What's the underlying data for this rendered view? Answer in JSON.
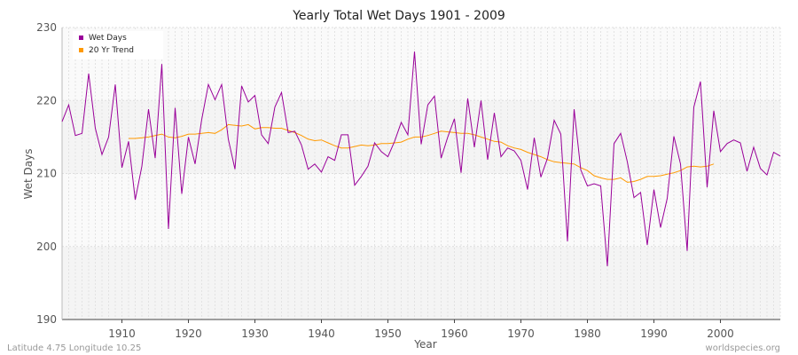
{
  "chart_data": {
    "type": "line",
    "title": "Yearly Total Wet Days 1901 - 2009",
    "xlabel": "Year",
    "ylabel": "Wet Days",
    "xlim": [
      1901,
      2009
    ],
    "ylim": [
      190,
      230
    ],
    "xticks": [
      "1910",
      "1920",
      "1930",
      "1940",
      "1950",
      "1960",
      "1970",
      "1980",
      "1990",
      "2000"
    ],
    "yticks": [
      "190",
      "200",
      "210",
      "220",
      "230"
    ],
    "legend_position": "top-left",
    "grid": true,
    "series": [
      {
        "name": "Wet Days",
        "color": "#990099",
        "x": [
          1901,
          1902,
          1903,
          1904,
          1905,
          1906,
          1907,
          1908,
          1909,
          1910,
          1911,
          1912,
          1913,
          1914,
          1915,
          1916,
          1917,
          1918,
          1919,
          1920,
          1921,
          1922,
          1923,
          1924,
          1925,
          1926,
          1927,
          1928,
          1929,
          1930,
          1931,
          1932,
          1933,
          1934,
          1935,
          1936,
          1937,
          1938,
          1939,
          1940,
          1941,
          1942,
          1943,
          1944,
          1945,
          1946,
          1947,
          1948,
          1949,
          1950,
          1951,
          1952,
          1953,
          1954,
          1955,
          1956,
          1957,
          1958,
          1959,
          1960,
          1961,
          1962,
          1963,
          1964,
          1965,
          1966,
          1967,
          1968,
          1969,
          1970,
          1971,
          1972,
          1973,
          1974,
          1975,
          1976,
          1977,
          1978,
          1979,
          1980,
          1981,
          1982,
          1983,
          1984,
          1985,
          1986,
          1987,
          1988,
          1989,
          1990,
          1991,
          1992,
          1993,
          1994,
          1995,
          1996,
          1997,
          1998,
          1999,
          2000,
          2001,
          2002,
          2003,
          2004,
          2005,
          2006,
          2007,
          2008,
          2009
        ],
        "values": [
          217.1,
          219.4,
          215.2,
          215.5,
          223.7,
          216.2,
          212.6,
          215.0,
          222.2,
          210.8,
          214.4,
          206.4,
          211.0,
          218.8,
          212.1,
          225.0,
          202.4,
          219.0,
          207.2,
          215.0,
          211.3,
          217.4,
          222.2,
          220.1,
          222.2,
          214.7,
          210.6,
          222.0,
          219.8,
          220.7,
          215.3,
          214.1,
          219.1,
          221.1,
          215.6,
          215.8,
          213.9,
          210.6,
          211.3,
          210.2,
          212.3,
          211.8,
          215.3,
          215.3,
          208.4,
          209.6,
          211.0,
          214.2,
          213.0,
          212.3,
          214.4,
          217.0,
          215.3,
          226.7,
          214.0,
          219.4,
          220.6,
          212.1,
          215.0,
          217.5,
          210.1,
          220.3,
          213.6,
          220.0,
          211.9,
          218.3,
          212.3,
          213.5,
          213.1,
          211.8,
          207.8,
          214.9,
          209.5,
          212.1,
          217.3,
          215.4,
          200.7,
          218.8,
          210.5,
          208.3,
          208.6,
          208.3,
          197.3,
          214.1,
          215.5,
          211.6,
          206.7,
          207.4,
          200.2,
          207.8,
          202.6,
          206.6,
          215.1,
          211.3,
          199.4,
          219.1,
          222.6,
          208.1,
          218.6,
          213.0,
          214.1,
          214.6,
          214.2,
          210.3,
          213.6,
          210.7,
          209.8,
          212.9,
          212.4
        ]
      },
      {
        "name": "20 Yr Trend",
        "color": "#FF9900",
        "x": [
          1911,
          1912,
          1913,
          1914,
          1915,
          1916,
          1917,
          1918,
          1919,
          1920,
          1921,
          1922,
          1923,
          1924,
          1925,
          1926,
          1927,
          1928,
          1929,
          1930,
          1931,
          1932,
          1933,
          1934,
          1935,
          1936,
          1937,
          1938,
          1939,
          1940,
          1941,
          1942,
          1943,
          1944,
          1945,
          1946,
          1947,
          1948,
          1949,
          1950,
          1951,
          1952,
          1953,
          1954,
          1955,
          1956,
          1957,
          1958,
          1959,
          1960,
          1961,
          1962,
          1963,
          1964,
          1965,
          1966,
          1967,
          1968,
          1969,
          1970,
          1971,
          1972,
          1973,
          1974,
          1975,
          1976,
          1977,
          1978,
          1979,
          1980,
          1981,
          1982,
          1983,
          1984,
          1985,
          1986,
          1987,
          1988,
          1989,
          1990,
          1991,
          1992,
          1993,
          1994,
          1995,
          1996,
          1997,
          1998,
          1999
        ],
        "values": [
          214.8,
          214.8,
          214.9,
          215.0,
          215.2,
          215.4,
          215.0,
          214.9,
          215.1,
          215.4,
          215.4,
          215.5,
          215.6,
          215.5,
          216.0,
          216.7,
          216.6,
          216.5,
          216.7,
          216.1,
          216.3,
          216.3,
          216.2,
          216.2,
          215.9,
          215.6,
          215.2,
          214.7,
          214.5,
          214.6,
          214.2,
          213.8,
          213.5,
          213.5,
          213.7,
          213.9,
          213.8,
          213.9,
          214.1,
          214.1,
          214.2,
          214.3,
          214.7,
          215.0,
          215.0,
          215.2,
          215.5,
          215.8,
          215.7,
          215.6,
          215.5,
          215.5,
          215.3,
          215.0,
          214.7,
          214.4,
          214.3,
          213.8,
          213.5,
          213.3,
          212.9,
          212.6,
          212.3,
          211.9,
          211.6,
          211.5,
          211.4,
          211.3,
          210.8,
          210.4,
          209.7,
          209.4,
          209.2,
          209.2,
          209.4,
          208.8,
          208.9,
          209.2,
          209.6,
          209.6,
          209.7,
          209.9,
          210.1,
          210.4,
          210.9,
          211.0,
          210.9,
          211.0,
          211.3
        ]
      }
    ]
  },
  "footer": {
    "location": "Latitude 4.75 Longitude 10.25",
    "source": "worldspecies.org"
  }
}
